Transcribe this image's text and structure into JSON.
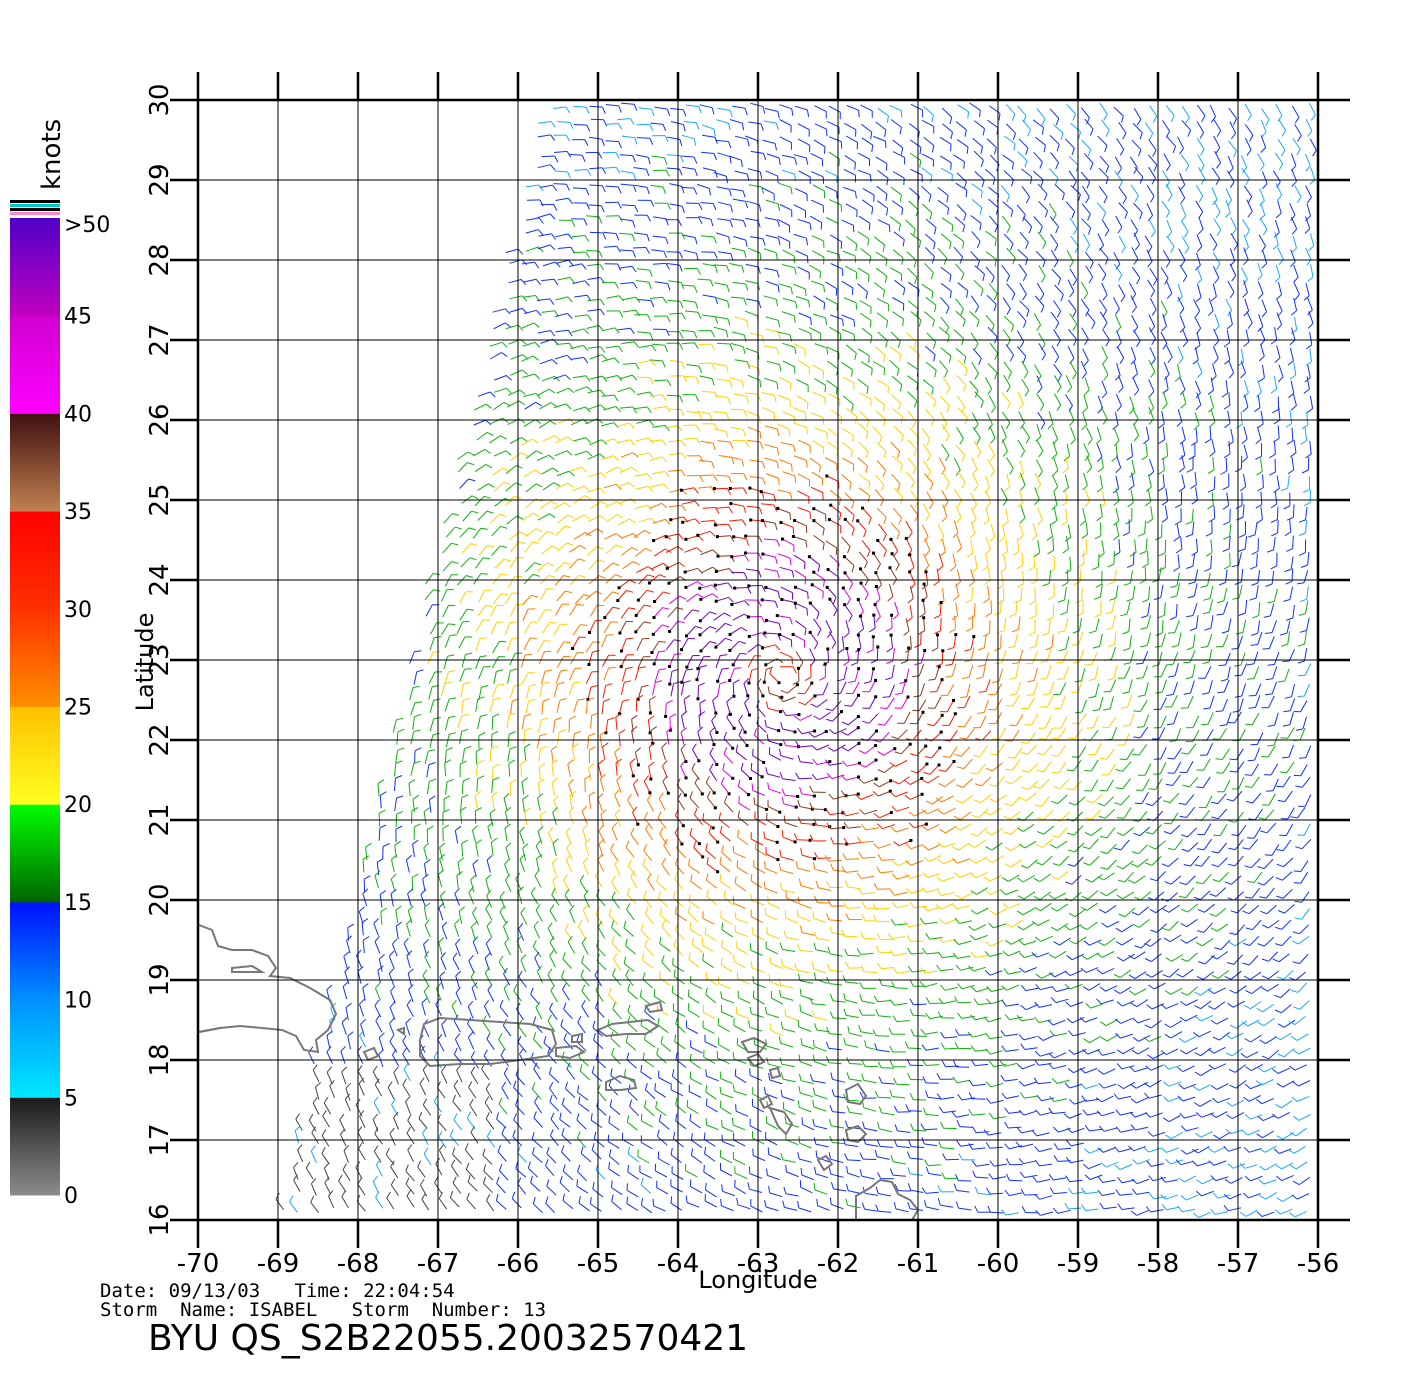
{
  "chart_data": {
    "type": "wind-barb-map",
    "xlabel": "Longitude",
    "ylabel": "Latitude",
    "xlim": [
      -70,
      -56
    ],
    "ylim": [
      16,
      30
    ],
    "x_ticks": [
      "-70",
      "-69",
      "-68",
      "-67",
      "-66",
      "-65",
      "-64",
      "-63",
      "-62",
      "-61",
      "-60",
      "-59",
      "-58",
      "-57",
      "-56"
    ],
    "y_ticks": [
      "16",
      "17",
      "18",
      "19",
      "20",
      "21",
      "22",
      "23",
      "24",
      "25",
      "26",
      "27",
      "28",
      "29",
      "30"
    ],
    "grid": true,
    "wind_field": {
      "storm_center": [
        -62.7,
        22.8
      ],
      "max_speed_knots": 50,
      "swath_west_edge_south": -69.0,
      "swath_west_edge_north": -65.7
    },
    "colorbar": {
      "unit": "knots",
      "labels": [
        "0",
        "5",
        "10",
        "15",
        "20",
        "25",
        "30",
        "35",
        "40",
        "45",
        ">50"
      ],
      "bands": [
        {
          "from": 0,
          "to": 5,
          "colors": [
            "#8c8c8c",
            "#1a1a1a"
          ]
        },
        {
          "from": 5,
          "to": 10,
          "colors": [
            "#00e8ff",
            "#0090ff"
          ]
        },
        {
          "from": 10,
          "to": 15,
          "colors": [
            "#0090ff",
            "#0010ff"
          ]
        },
        {
          "from": 15,
          "to": 20,
          "colors": [
            "#006400",
            "#00ff00"
          ]
        },
        {
          "from": 20,
          "to": 25,
          "colors": [
            "#ffff20",
            "#ffc000"
          ]
        },
        {
          "from": 25,
          "to": 30,
          "colors": [
            "#ff9000",
            "#ff3000"
          ]
        },
        {
          "from": 30,
          "to": 35,
          "colors": [
            "#ff3000",
            "#ff0000"
          ]
        },
        {
          "from": 35,
          "to": 40,
          "colors": [
            "#c08050",
            "#401010"
          ]
        },
        {
          "from": 40,
          "to": 45,
          "colors": [
            "#ff00ff",
            "#d000d0"
          ]
        },
        {
          "from": 45,
          "to": 50,
          "colors": [
            "#c000c0",
            "#5000c8"
          ]
        }
      ]
    }
  },
  "footer": {
    "line1": "Date: 09/13/03   Time: 22:04:54",
    "line2": "Storm  Name: ISABEL   Storm  Number: 13",
    "product": "BYU  QS_S2B22055.20032570421"
  }
}
